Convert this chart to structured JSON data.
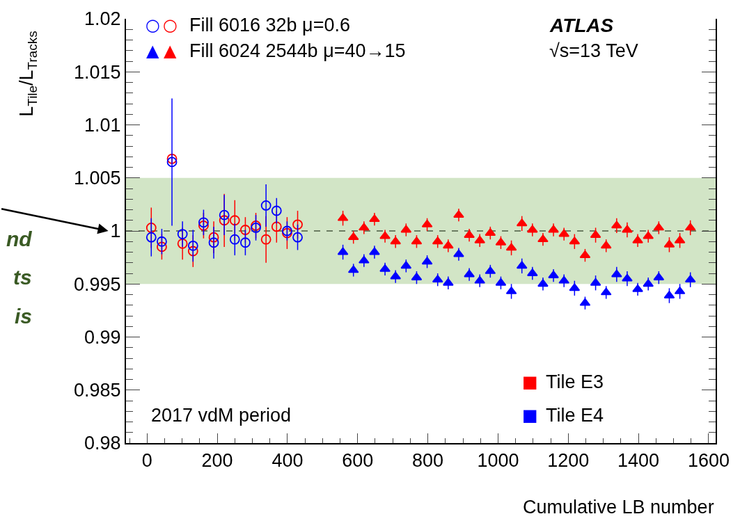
{
  "chart_data": {
    "type": "scatter",
    "xlabel": "Cumulative LB number",
    "ylabel": "L$_{Tile}$/L$_{Tracks}$",
    "xlim": [
      -60,
      1620
    ],
    "xticks": [
      0,
      200,
      400,
      600,
      800,
      1000,
      1200,
      1400,
      1600
    ],
    "ylim": [
      0.98,
      1.02
    ],
    "yticks": [
      0.98,
      0.985,
      0.99,
      0.995,
      1,
      1.005,
      1.01,
      1.015,
      1.02
    ],
    "grid": false,
    "series": [
      {
        "color": "#ff0000",
        "marker": "circle",
        "x": [
          12,
          42,
          71,
          101,
          131,
          161,
          190,
          220,
          250,
          280,
          310,
          339,
          369,
          399,
          429
        ],
        "values": [
          1.0003,
          0.9985,
          1.0068,
          0.9988,
          0.9981,
          1.0005,
          0.9994,
          1.001,
          1.001,
          1.0001,
          1.0005,
          0.9992,
          1.0004,
          0.9998,
          1.0006
        ],
        "errors": [
          0.0019,
          0.0012,
          0.0005,
          0.0015,
          0.0015,
          0.0012,
          0.0015,
          0.0025,
          0.0019,
          0.0012,
          0.0012,
          0.0022,
          0.0015,
          0.0015,
          0.0013
        ]
      },
      {
        "color": "#0000ff",
        "marker": "circle",
        "x": [
          12,
          42,
          71,
          101,
          131,
          161,
          190,
          220,
          250,
          280,
          310,
          339,
          369,
          399,
          429
        ],
        "values": [
          0.9994,
          0.999,
          1.0065,
          0.9997,
          0.9986,
          1.0008,
          0.9989,
          1.0015,
          0.9992,
          0.9989,
          1.0003,
          1.0024,
          1.0019,
          1.0,
          0.9994
        ],
        "errors": [
          0.0018,
          0.0012,
          0.006,
          0.0012,
          0.0015,
          0.0012,
          0.0015,
          0.0019,
          0.0015,
          0.0012,
          0.0012,
          0.002,
          0.0012,
          0.0009,
          0.0012
        ]
      },
      {
        "color": "#ff0000",
        "marker": "triangle",
        "x": [
          558,
          588,
          618,
          648,
          678,
          708,
          738,
          768,
          798,
          828,
          858,
          888,
          918,
          948,
          978,
          1008,
          1038,
          1068,
          1098,
          1128,
          1158,
          1188,
          1218,
          1248,
          1278,
          1308,
          1338,
          1368,
          1398,
          1428,
          1458,
          1488,
          1518,
          1548
        ],
        "values": [
          1.0012,
          0.9994,
          1.0003,
          1.0011,
          0.9995,
          0.999,
          1.0001,
          0.999,
          1.0006,
          0.999,
          0.9986,
          1.0015,
          0.9996,
          0.9991,
          0.9998,
          0.9989,
          0.9984,
          1.0007,
          1.0001,
          0.9992,
          1.0001,
          0.9997,
          0.999,
          0.9977,
          0.9996,
          0.9986,
          1.0005,
          1.0001,
          0.9991,
          0.9995,
          1.0003,
          0.9987,
          0.9991,
          1.0003
        ],
        "errors": [
          0.0007,
          0.0006,
          0.0006,
          0.0006,
          0.0006,
          0.0006,
          0.0006,
          0.0006,
          0.0006,
          0.0006,
          0.0006,
          0.0006,
          0.0006,
          0.0006,
          0.0006,
          0.0006,
          0.0007,
          0.0007,
          0.0006,
          0.0006,
          0.0006,
          0.0006,
          0.0007,
          0.0006,
          0.0007,
          0.0006,
          0.0007,
          0.0007,
          0.0006,
          0.0006,
          0.0006,
          0.0007,
          0.0007,
          0.0007
        ]
      },
      {
        "color": "#0000ff",
        "marker": "triangle",
        "x": [
          558,
          588,
          618,
          648,
          678,
          708,
          738,
          768,
          798,
          828,
          858,
          888,
          918,
          948,
          978,
          1008,
          1038,
          1068,
          1098,
          1128,
          1158,
          1188,
          1218,
          1248,
          1278,
          1308,
          1338,
          1368,
          1398,
          1428,
          1458,
          1488,
          1518,
          1548
        ],
        "values": [
          0.998,
          0.9963,
          0.9972,
          0.998,
          0.9964,
          0.9957,
          0.9967,
          0.9956,
          0.9971,
          0.9954,
          0.9951,
          0.9978,
          0.9959,
          0.9953,
          0.9962,
          0.9951,
          0.9943,
          0.9967,
          0.996,
          0.995,
          0.9958,
          0.9953,
          0.9946,
          0.9932,
          0.9951,
          0.9942,
          0.9959,
          0.9955,
          0.9945,
          0.995,
          0.9956,
          0.9939,
          0.9943,
          0.9954
        ],
        "errors": [
          0.0007,
          0.0006,
          0.0006,
          0.0006,
          0.0006,
          0.0006,
          0.0006,
          0.0006,
          0.0006,
          0.0006,
          0.0006,
          0.0006,
          0.0006,
          0.0006,
          0.0006,
          0.0006,
          0.0007,
          0.0007,
          0.0006,
          0.0006,
          0.0006,
          0.0006,
          0.0007,
          0.0006,
          0.0007,
          0.0006,
          0.0007,
          0.0007,
          0.0006,
          0.0006,
          0.0006,
          0.0007,
          0.0007,
          0.0007
        ]
      }
    ],
    "ref_lines": [
      {
        "axis": "y",
        "value": 1,
        "color": "#4a5a40",
        "line_style": "dashed"
      }
    ],
    "bands": [
      {
        "axis": "y",
        "from": 0.995,
        "to": 1.005,
        "color": "#d2e5c6"
      }
    ],
    "annotations": [
      "Fill 6016 32b μ=0.6",
      "Fill 6024 2544b μ=40→15",
      "Tile E3",
      "Tile E4",
      "ATLAS",
      "√s=13 TeV",
      "2017 vdM period",
      "nd",
      "ts",
      "is",
      "○",
      "○",
      "▲",
      "▲",
      "■",
      "■"
    ]
  }
}
